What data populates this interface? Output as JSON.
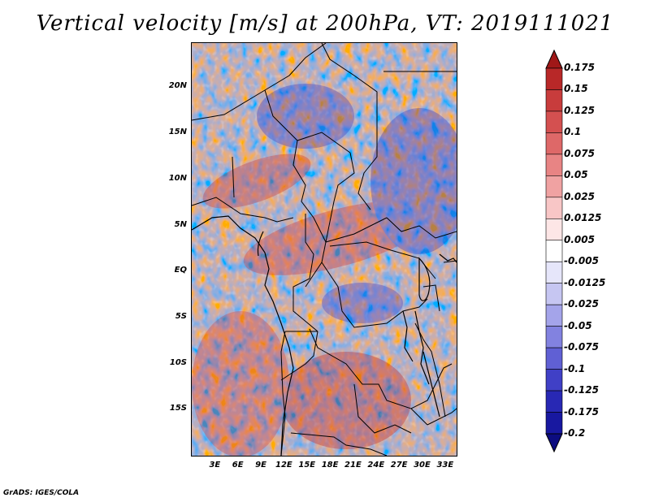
{
  "title": "Vertical velocity [m/s] at 200hPa, VT: 2019111021",
  "footer": "GrADS: IGES/COLA",
  "lat_axis": [
    {
      "label": "20N",
      "lat": 20
    },
    {
      "label": "15N",
      "lat": 15
    },
    {
      "label": "10N",
      "lat": 10
    },
    {
      "label": "5N",
      "lat": 5
    },
    {
      "label": "EQ",
      "lat": 0
    },
    {
      "label": "5S",
      "lat": -5
    },
    {
      "label": "10S",
      "lat": -10
    },
    {
      "label": "15S",
      "lat": -15
    }
  ],
  "lon_axis": [
    {
      "label": "3E",
      "lon": 3
    },
    {
      "label": "6E",
      "lon": 6
    },
    {
      "label": "9E",
      "lon": 9
    },
    {
      "label": "12E",
      "lon": 12
    },
    {
      "label": "15E",
      "lon": 15
    },
    {
      "label": "18E",
      "lon": 18
    },
    {
      "label": "21E",
      "lon": 21
    },
    {
      "label": "24E",
      "lon": 24
    },
    {
      "label": "27E",
      "lon": 27
    },
    {
      "label": "30E",
      "lon": 30
    },
    {
      "label": "33E",
      "lon": 33
    }
  ],
  "extent": {
    "lon_min": 0,
    "lon_max": 34.5,
    "lat_min": -20,
    "lat_max": 24.8
  },
  "colorbar": {
    "levels": [
      "0.175",
      "0.15",
      "0.125",
      "0.1",
      "0.075",
      "0.05",
      "0.025",
      "0.0125",
      "0.005",
      "-0.005",
      "-0.0125",
      "-0.025",
      "-0.05",
      "-0.075",
      "-0.1",
      "-0.125",
      "-0.175",
      "-0.2"
    ],
    "colors": [
      "#a01818",
      "#b82828",
      "#c83c3c",
      "#d45050",
      "#de6868",
      "#e88484",
      "#f0a2a2",
      "#f8c6c6",
      "#fde6e6",
      "#ffffff",
      "#e6e6fa",
      "#c6c6f2",
      "#a4a4ea",
      "#8282e0",
      "#6060d4",
      "#4040c6",
      "#2828b4",
      "#1818a0",
      "#0c0c80"
    ]
  }
}
